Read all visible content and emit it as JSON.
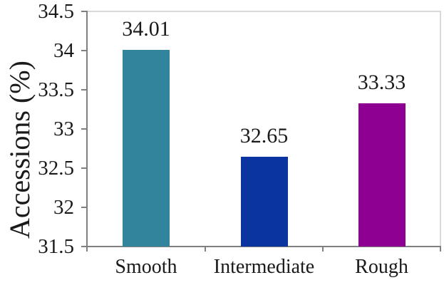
{
  "chart_data": {
    "type": "bar",
    "title": "",
    "categories": [
      "Smooth",
      "Intermediate",
      "Rough"
    ],
    "values": [
      34.01,
      32.65,
      33.33
    ],
    "value_labels": [
      "34.01",
      "32.65",
      "33.33"
    ],
    "xlabel": "",
    "ylabel": "Accessions (%)",
    "ylim": [
      31.5,
      34.5
    ],
    "ytick_step": 0.5,
    "yticks": [
      "34.5",
      "34",
      "33.5",
      "33",
      "32.5",
      "32",
      "31.5"
    ],
    "grid": false,
    "legend": "none",
    "bar_colors": [
      "#31849B",
      "#0A35A0",
      "#8D0092"
    ],
    "axis_color": "#808080",
    "plot_border_color": "#D9D9D9",
    "text_color": "#1A1A1A",
    "background": "#FFFFFF"
  }
}
